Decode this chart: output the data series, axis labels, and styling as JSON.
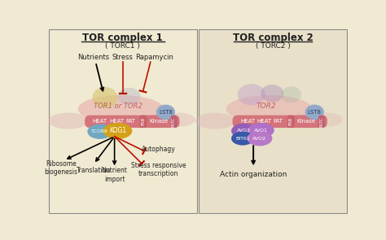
{
  "bg_color": "#f0ead2",
  "bg_color_right": "#e8e0c8",
  "text_color": "#222222",
  "red_color": "#bb1100",
  "title1": "TOR complex 1",
  "subtitle1": "( TORC1 )",
  "title2": "TOR complex 2",
  "subtitle2": "( TORC2 )",
  "heat_bar_color": "#d4737a",
  "kinase_color": "#d4737a",
  "frb_color": "#c86068",
  "fatc_color": "#c06070",
  "lst8_color": "#92aac8",
  "tco89_color": "#6fa8c0",
  "kog1_color": "#d4a018",
  "tor_label_color": "#c06060",
  "big_pink_color": "#e8a8a8",
  "left_membrane_color": "#e0b8b8",
  "yellow_blob_color": "#d8c878",
  "grey_blob_color": "#b8b8c4",
  "avo3_color": "#9060b8",
  "avo1_color": "#b070c8",
  "avo2_color": "#b878c8",
  "bit61_color": "#3858a8",
  "right_pink_blob": "#d8a8b8",
  "right_purple_blob1": "#c0a0cc",
  "right_purple_blob2": "#a888bc"
}
